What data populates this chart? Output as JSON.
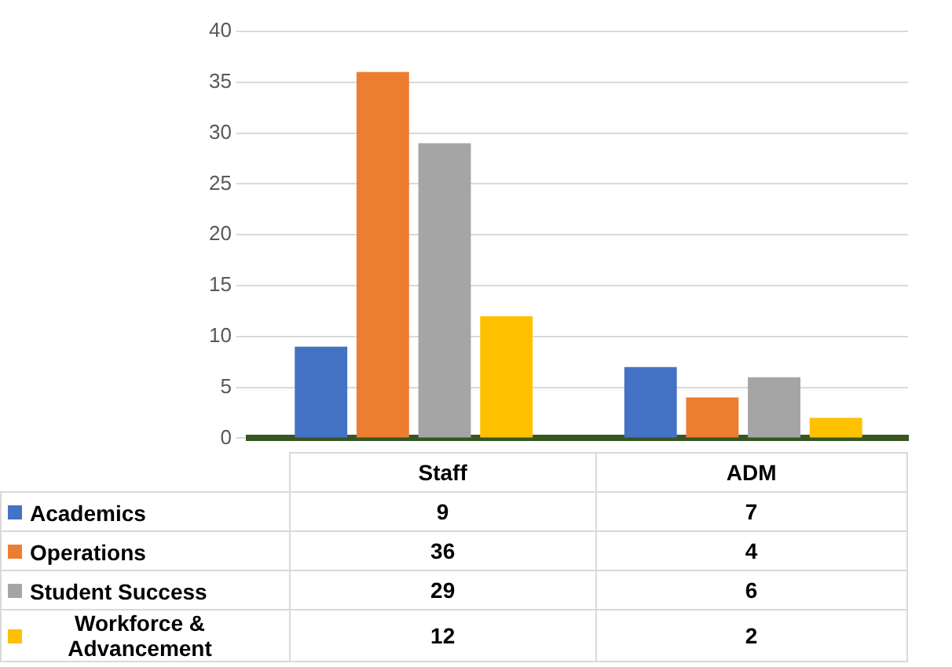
{
  "chart_data": {
    "type": "bar",
    "categories": [
      "Staff",
      "ADM"
    ],
    "series": [
      {
        "name": "Academics",
        "color": "#4472c4",
        "values": [
          9,
          7
        ]
      },
      {
        "name": "Operations",
        "color": "#ed7d31",
        "values": [
          36,
          4
        ]
      },
      {
        "name": "Student Success",
        "color": "#a5a5a5",
        "values": [
          29,
          6
        ]
      },
      {
        "name": "Workforce & Advancement",
        "color": "#ffc000",
        "values": [
          12,
          2
        ]
      }
    ],
    "ylim": [
      0,
      40
    ],
    "yticks": [
      0,
      5,
      10,
      15,
      20,
      25,
      30,
      35,
      40
    ],
    "grid": "y",
    "legend": "bottom",
    "data_labels": true
  }
}
